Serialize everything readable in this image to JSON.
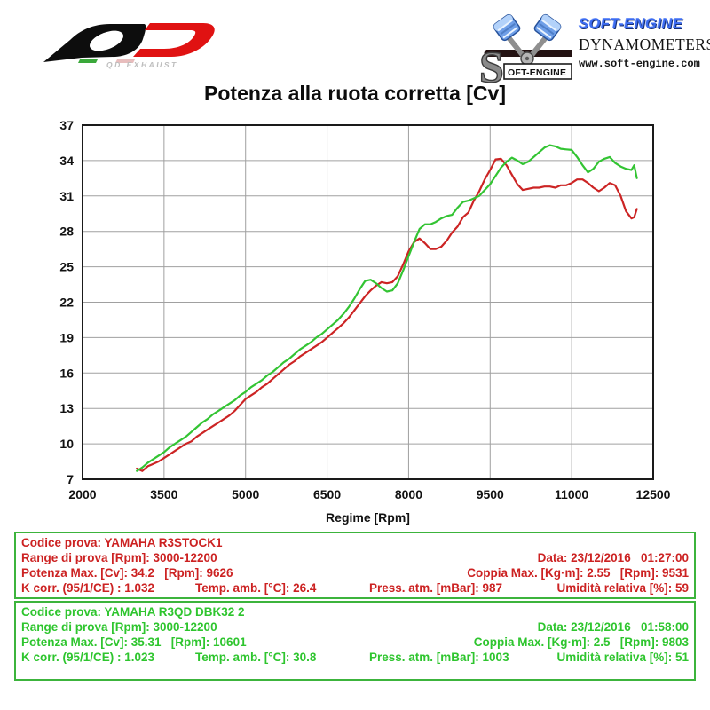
{
  "header": {
    "qd_logo": {
      "subtext": "QD EXHAUST"
    },
    "soft_engine": {
      "brand": "SOFT-ENGINE",
      "division": "DYNAMOMETERS",
      "url": "www.soft-engine.com",
      "emblem_text": "OFT-ENGINE"
    }
  },
  "colors": {
    "box_border": "#3cb43c",
    "red_series": "#cc2424",
    "green_series": "#33c433",
    "grid": "#a0a0a0",
    "plot_border": "#1a1a1a"
  },
  "chart_data": {
    "type": "line",
    "title": "Potenza alla ruota corretta [Cv]",
    "xlabel": "Regime [Rpm]",
    "ylabel": "",
    "xlim": [
      2000,
      12500
    ],
    "ylim": [
      7,
      37
    ],
    "x_ticks": [
      2000,
      3500,
      5000,
      6500,
      8000,
      9500,
      11000,
      12500
    ],
    "y_ticks": [
      7,
      10,
      13,
      16,
      19,
      22,
      25,
      28,
      31,
      34,
      37
    ],
    "grid": true,
    "legend_position": "none",
    "x": [
      3000,
      3100,
      3200,
      3300,
      3400,
      3500,
      3600,
      3700,
      3800,
      3900,
      4000,
      4100,
      4200,
      4300,
      4400,
      4500,
      4600,
      4700,
      4800,
      4900,
      5000,
      5100,
      5200,
      5300,
      5400,
      5500,
      5600,
      5700,
      5800,
      5900,
      6000,
      6100,
      6200,
      6300,
      6400,
      6500,
      6600,
      6700,
      6800,
      6900,
      7000,
      7100,
      7200,
      7300,
      7400,
      7500,
      7600,
      7700,
      7800,
      7900,
      8000,
      8100,
      8200,
      8300,
      8400,
      8500,
      8600,
      8700,
      8800,
      8900,
      9000,
      9100,
      9200,
      9300,
      9400,
      9500,
      9600,
      9700,
      9800,
      9900,
      10000,
      10100,
      10200,
      10300,
      10400,
      10500,
      10600,
      10700,
      10800,
      10900,
      11000,
      11100,
      11200,
      11300,
      11400,
      11500,
      11600,
      11700,
      11800,
      11900,
      12000,
      12100,
      12150,
      12200
    ],
    "series": [
      {
        "name": "YAMAHA R3STOCK1",
        "color": "#cc2424",
        "max_power_cv": 34.2,
        "max_power_rpm": 9626,
        "values": [
          7.9,
          7.7,
          8.1,
          8.3,
          8.5,
          8.8,
          9.1,
          9.4,
          9.7,
          10.0,
          10.2,
          10.6,
          10.9,
          11.2,
          11.5,
          11.8,
          12.1,
          12.4,
          12.8,
          13.3,
          13.8,
          14.1,
          14.4,
          14.8,
          15.1,
          15.5,
          15.9,
          16.3,
          16.7,
          17.0,
          17.4,
          17.7,
          18.0,
          18.3,
          18.6,
          19.0,
          19.4,
          19.8,
          20.2,
          20.7,
          21.3,
          21.9,
          22.5,
          23.0,
          23.4,
          23.7,
          23.6,
          23.7,
          24.2,
          25.2,
          26.3,
          27.1,
          27.4,
          27.0,
          26.5,
          26.5,
          26.7,
          27.2,
          27.9,
          28.4,
          29.2,
          29.6,
          30.6,
          31.4,
          32.4,
          33.2,
          34.1,
          34.15,
          33.6,
          32.8,
          32.0,
          31.5,
          31.6,
          31.7,
          31.7,
          31.8,
          31.8,
          31.7,
          31.9,
          31.9,
          32.1,
          32.4,
          32.4,
          32.1,
          31.7,
          31.4,
          31.7,
          32.1,
          31.9,
          31.0,
          29.7,
          29.1,
          29.2,
          29.9
        ]
      },
      {
        "name": "YAMAHA R3QD DBK32 2",
        "color": "#33c433",
        "max_power_cv": 35.31,
        "max_power_rpm": 10601,
        "values": [
          7.7,
          8.0,
          8.4,
          8.7,
          9.0,
          9.3,
          9.7,
          10.0,
          10.3,
          10.6,
          11.0,
          11.4,
          11.8,
          12.1,
          12.5,
          12.8,
          13.1,
          13.4,
          13.7,
          14.1,
          14.4,
          14.8,
          15.1,
          15.4,
          15.8,
          16.1,
          16.5,
          16.9,
          17.2,
          17.6,
          18.0,
          18.3,
          18.6,
          19.0,
          19.3,
          19.7,
          20.1,
          20.5,
          21.0,
          21.6,
          22.3,
          23.1,
          23.8,
          23.9,
          23.6,
          23.2,
          22.9,
          23.0,
          23.6,
          24.7,
          25.9,
          27.1,
          28.2,
          28.6,
          28.6,
          28.8,
          29.1,
          29.3,
          29.4,
          30.0,
          30.5,
          30.6,
          30.8,
          31.0,
          31.5,
          32.0,
          32.7,
          33.4,
          33.9,
          34.25,
          34.0,
          33.7,
          33.9,
          34.3,
          34.7,
          35.1,
          35.3,
          35.2,
          35.0,
          34.95,
          34.9,
          34.3,
          33.6,
          33.0,
          33.3,
          33.9,
          34.15,
          34.3,
          33.8,
          33.5,
          33.3,
          33.2,
          33.6,
          32.5
        ]
      }
    ]
  },
  "info_boxes": [
    {
      "text_color": "#cc2222",
      "codice": "Codice prova: YAMAHA R3STOCK1",
      "range": "Range di prova [Rpm]: 3000-12200",
      "data": "Data: 23/12/2016   01:27:00",
      "potenza": "Potenza Max. [Cv]: 34.2   [Rpm]: 9626",
      "coppia": "Coppia Max. [Kg·m]: 2.55   [Rpm]: 9531",
      "kcorr": "K corr. (95/1/CE) : 1.032",
      "temp": "Temp. amb. [°C]: 26.4",
      "press": "Press. atm. [mBar]: 987",
      "umidita": "Umidità relativa [%]: 59"
    },
    {
      "text_color": "#2ec52e",
      "codice": "Codice prova: YAMAHA R3QD DBK32 2",
      "range": "Range di prova [Rpm]: 3000-12200",
      "data": "Data: 23/12/2016   01:58:00",
      "potenza": "Potenza Max. [Cv]: 35.31   [Rpm]: 10601",
      "coppia": "Coppia Max. [Kg·m]: 2.5   [Rpm]: 9803",
      "kcorr": "K corr. (95/1/CE) : 1.023",
      "temp": "Temp. amb. [°C]: 30.8",
      "press": "Press. atm. [mBar]: 1003",
      "umidita": "Umidità relativa [%]: 51"
    }
  ]
}
